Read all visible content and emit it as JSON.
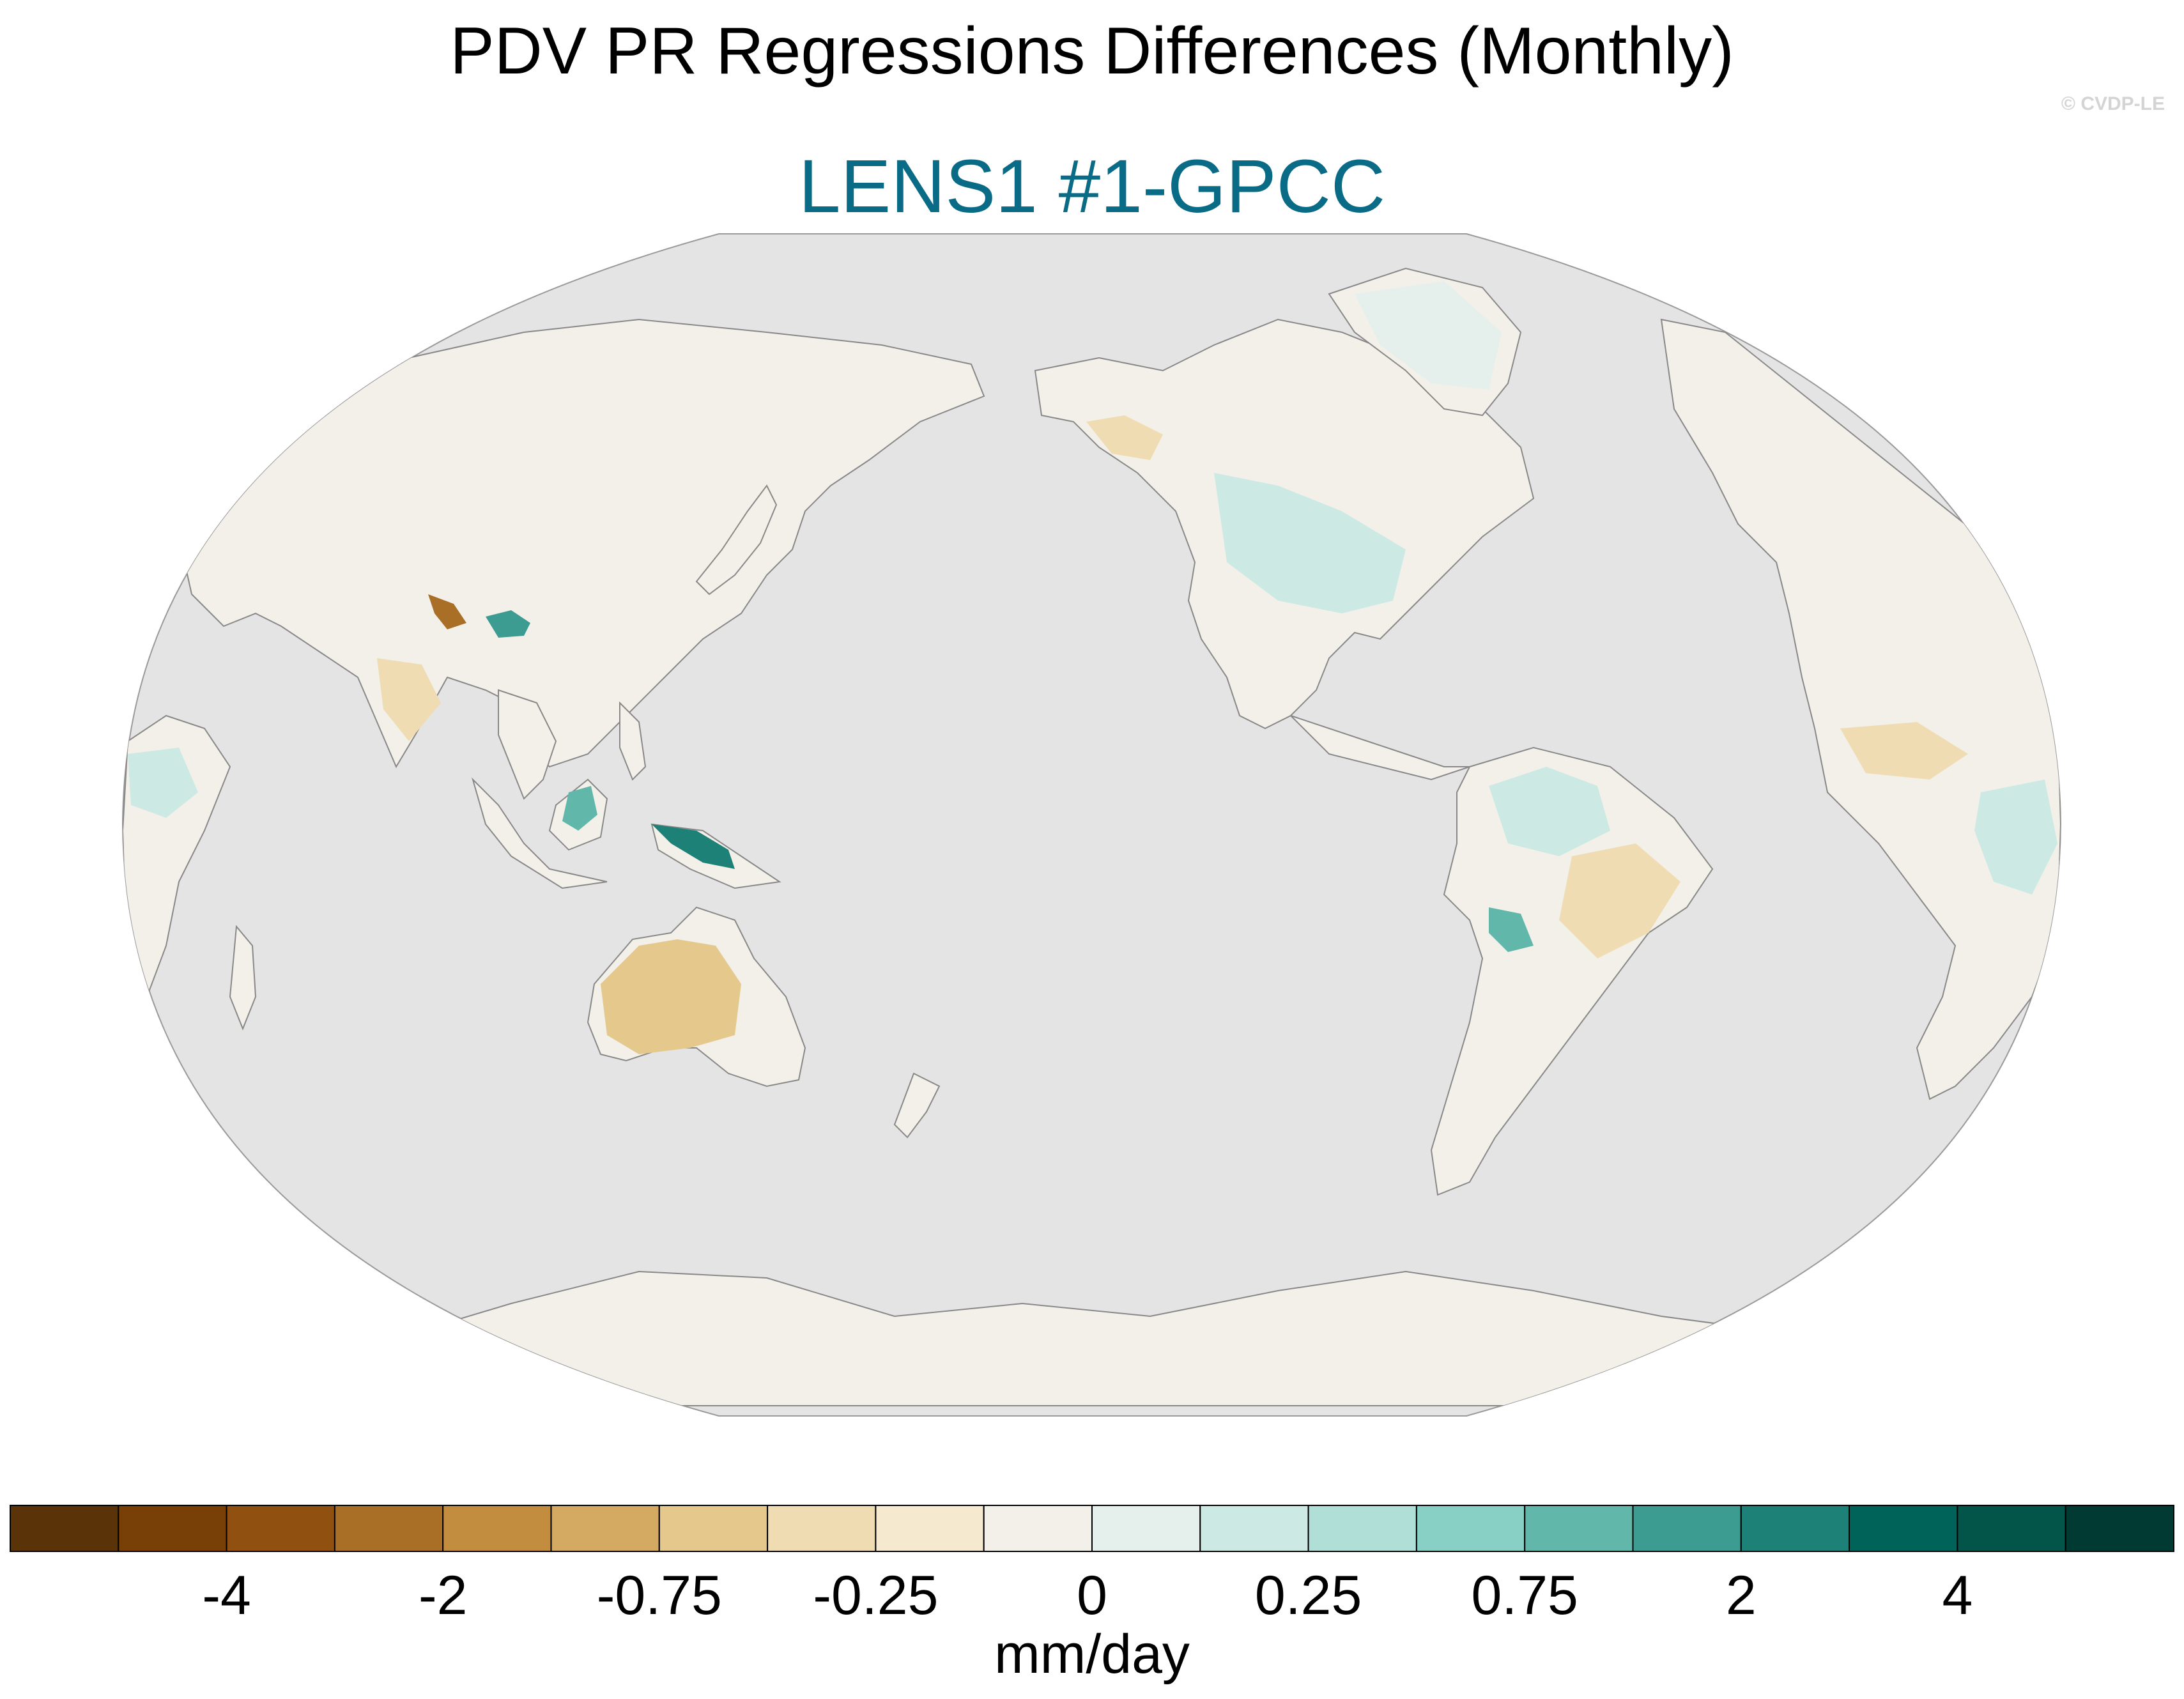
{
  "title": "PDV PR Regressions Differences (Monthly)",
  "subtitle": "LENS1 #1-GPCC",
  "credit": "© CVDP-LE",
  "colors": {
    "ocean": "#e4e4e4",
    "land_neutral": "#f3f0ea",
    "coast": "#888888",
    "subtitle": "#0a6b86"
  },
  "colorbar": {
    "units": "mm/day",
    "colors": [
      "#5a3408",
      "#784007",
      "#8f5010",
      "#a96f26",
      "#c28d3e",
      "#d4aa63",
      "#e4c88c",
      "#efdcb2",
      "#f5ead0",
      "#f3f0ea",
      "#e5efec",
      "#cde9e4",
      "#b0dfd8",
      "#88d0c5",
      "#60b7aa",
      "#3c9c91",
      "#1e8178",
      "#006359",
      "#03554a",
      "#013a32"
    ],
    "tick_labels": [
      "-4",
      "-2",
      "-0.75",
      "-0.25",
      "0",
      "0.25",
      "0.75",
      "2",
      "4"
    ],
    "tick_boundaries": [
      2,
      4,
      6,
      8,
      10,
      12,
      14,
      16,
      18
    ]
  },
  "regions": [
    {
      "name": "tibet-dry-anomaly",
      "value": -2,
      "color": "#a96f26"
    },
    {
      "name": "tibet-wet-anomaly",
      "value": 2,
      "color": "#3c9c91"
    },
    {
      "name": "borneo-wet-anomaly",
      "value": 0.75,
      "color": "#60b7aa"
    },
    {
      "name": "new-guinea-wet-anomaly",
      "value": 2,
      "color": "#1e8178"
    },
    {
      "name": "australia-dry-anomaly",
      "value": -0.25,
      "color": "#e4c88c"
    },
    {
      "name": "amazon-wet-anomaly",
      "value": 0.25,
      "color": "#cde9e4"
    },
    {
      "name": "brazil-dry-anomaly",
      "value": -0.25,
      "color": "#efdcb2"
    },
    {
      "name": "andes-wet-anomaly",
      "value": 0.75,
      "color": "#60b7aa"
    },
    {
      "name": "north-america-wet-anomaly",
      "value": 0.25,
      "color": "#cde9e4"
    },
    {
      "name": "greenland-wet-anomaly",
      "value": 0.25,
      "color": "#e5efec"
    },
    {
      "name": "alaska-dry-anomaly",
      "value": -0.25,
      "color": "#efdcb2"
    },
    {
      "name": "sahel-dry-anomaly",
      "value": -0.25,
      "color": "#efdcb2"
    },
    {
      "name": "east-africa-wet-anomaly",
      "value": 0.25,
      "color": "#cde9e4"
    },
    {
      "name": "india-dry-anomaly",
      "value": -0.25,
      "color": "#efdcb2"
    },
    {
      "name": "west-africa-wet-anomaly",
      "value": 0.25,
      "color": "#cde9e4"
    }
  ]
}
